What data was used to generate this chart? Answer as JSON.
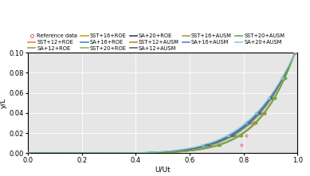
{
  "xlabel": "U/Ut",
  "ylabel": "y/L",
  "xlim": [
    0,
    1.0
  ],
  "ylim": [
    0,
    0.1
  ],
  "yticks": [
    0,
    0.02,
    0.04,
    0.06,
    0.08,
    0.1
  ],
  "xticks": [
    0,
    0.2,
    0.4,
    0.6,
    0.8,
    1.0
  ],
  "background_color": "#e6e6e6",
  "grid_color": "#ffffff",
  "legend_ncol": 5,
  "legend_fontsize": 4.8,
  "curves": [
    {
      "label": "Reference data",
      "color": "#e06060",
      "marker": "o",
      "lw": 0,
      "x": [
        0.0,
        0.0,
        0.792,
        0.81,
        0.84,
        0.875,
        0.99
      ],
      "y": [
        0.0,
        0.0,
        0.008,
        0.018,
        0.03,
        0.04,
        0.1
      ]
    },
    {
      "label": "SST+12+ROE",
      "color": "#e08840",
      "marker": null,
      "lw": 0.85,
      "n": 7.5,
      "u_edge": 0.99,
      "spread": 0.0
    },
    {
      "label": "SA+12+ROE",
      "color": "#88aa55",
      "marker": null,
      "lw": 0.85,
      "n": 7.0,
      "u_edge": 0.99,
      "spread": 0.008
    },
    {
      "label": "SST+16+ROE",
      "color": "#ccaa10",
      "marker": null,
      "lw": 0.85,
      "n": 7.6,
      "u_edge": 0.99,
      "spread": 0.002
    },
    {
      "label": "SA+16+ROE",
      "color": "#4488cc",
      "marker": null,
      "lw": 0.85,
      "n": 6.8,
      "u_edge": 0.99,
      "spread": 0.01
    },
    {
      "label": "SST+20+ROE",
      "color": "#88bb55",
      "marker": null,
      "lw": 0.85,
      "n": 7.7,
      "u_edge": 0.99,
      "spread": 0.001
    },
    {
      "label": "SA+20+ROE",
      "color": "#334466",
      "marker": null,
      "lw": 0.85,
      "n": 6.6,
      "u_edge": 0.99,
      "spread": 0.013
    },
    {
      "label": "SST+12+AUSM",
      "color": "#bb8833",
      "marker": null,
      "lw": 0.85,
      "n": 7.4,
      "u_edge": 0.99,
      "spread": 0.002
    },
    {
      "label": "SA+12+AUSM",
      "color": "#666666",
      "marker": null,
      "lw": 0.85,
      "n": 6.7,
      "u_edge": 0.99,
      "spread": 0.012
    },
    {
      "label": "SST+16+AUSM",
      "color": "#aa9955",
      "marker": null,
      "lw": 0.85,
      "n": 7.5,
      "u_edge": 0.99,
      "spread": 0.002
    },
    {
      "label": "SA+16+AUSM",
      "color": "#5588bb",
      "marker": null,
      "lw": 0.85,
      "n": 6.5,
      "u_edge": 0.99,
      "spread": 0.014
    },
    {
      "label": "SST+20+AUSM",
      "color": "#66aa44",
      "marker": null,
      "lw": 0.85,
      "n": 7.6,
      "u_edge": 0.99,
      "spread": 0.001
    },
    {
      "label": "SA+20+AUSM",
      "color": "#88ccdd",
      "marker": null,
      "lw": 0.85,
      "n": 6.3,
      "u_edge": 0.99,
      "spread": 0.016
    }
  ],
  "marker_y_vals": [
    0.008,
    0.018,
    0.03,
    0.04,
    0.055,
    0.075,
    0.1
  ],
  "ref_marker_y": [
    0.0,
    0.008,
    0.018,
    0.03,
    0.04,
    0.1
  ]
}
